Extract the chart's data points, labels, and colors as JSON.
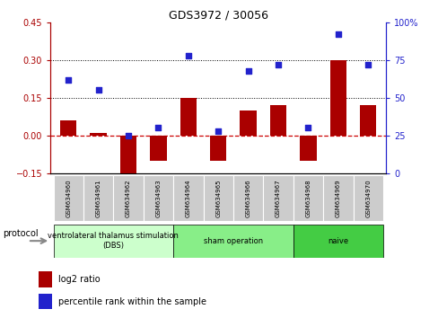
{
  "title": "GDS3972 / 30056",
  "samples": [
    "GSM634960",
    "GSM634961",
    "GSM634962",
    "GSM634963",
    "GSM634964",
    "GSM634965",
    "GSM634966",
    "GSM634967",
    "GSM634968",
    "GSM634969",
    "GSM634970"
  ],
  "log2_ratio": [
    0.06,
    0.01,
    -0.18,
    -0.1,
    0.15,
    -0.1,
    0.1,
    0.12,
    -0.1,
    0.3,
    0.12
  ],
  "percentile_rank": [
    62,
    55,
    25,
    30,
    78,
    28,
    68,
    72,
    30,
    92,
    72
  ],
  "bar_color": "#aa0000",
  "dot_color": "#2222cc",
  "ylim_left": [
    -0.15,
    0.45
  ],
  "ylim_right": [
    0,
    100
  ],
  "yticks_left": [
    -0.15,
    0.0,
    0.15,
    0.3,
    0.45
  ],
  "yticks_right": [
    0,
    25,
    50,
    75,
    100
  ],
  "ytick_right_labels": [
    "0",
    "25",
    "50",
    "75",
    "100%"
  ],
  "hlines": [
    0.15,
    0.3
  ],
  "zero_line_color": "#cc0000",
  "hline_color": "black",
  "groups": [
    {
      "label": "ventrolateral thalamus stimulation\n(DBS)",
      "start": 0,
      "end": 3,
      "color": "#ccffcc"
    },
    {
      "label": "sham operation",
      "start": 4,
      "end": 7,
      "color": "#88ee88"
    },
    {
      "label": "naive",
      "start": 8,
      "end": 10,
      "color": "#44cc44"
    }
  ],
  "legend_bar_label": "log2 ratio",
  "legend_dot_label": "percentile rank within the sample",
  "protocol_label": "protocol",
  "sample_box_color": "#cccccc",
  "plot_bg": "#ffffff"
}
